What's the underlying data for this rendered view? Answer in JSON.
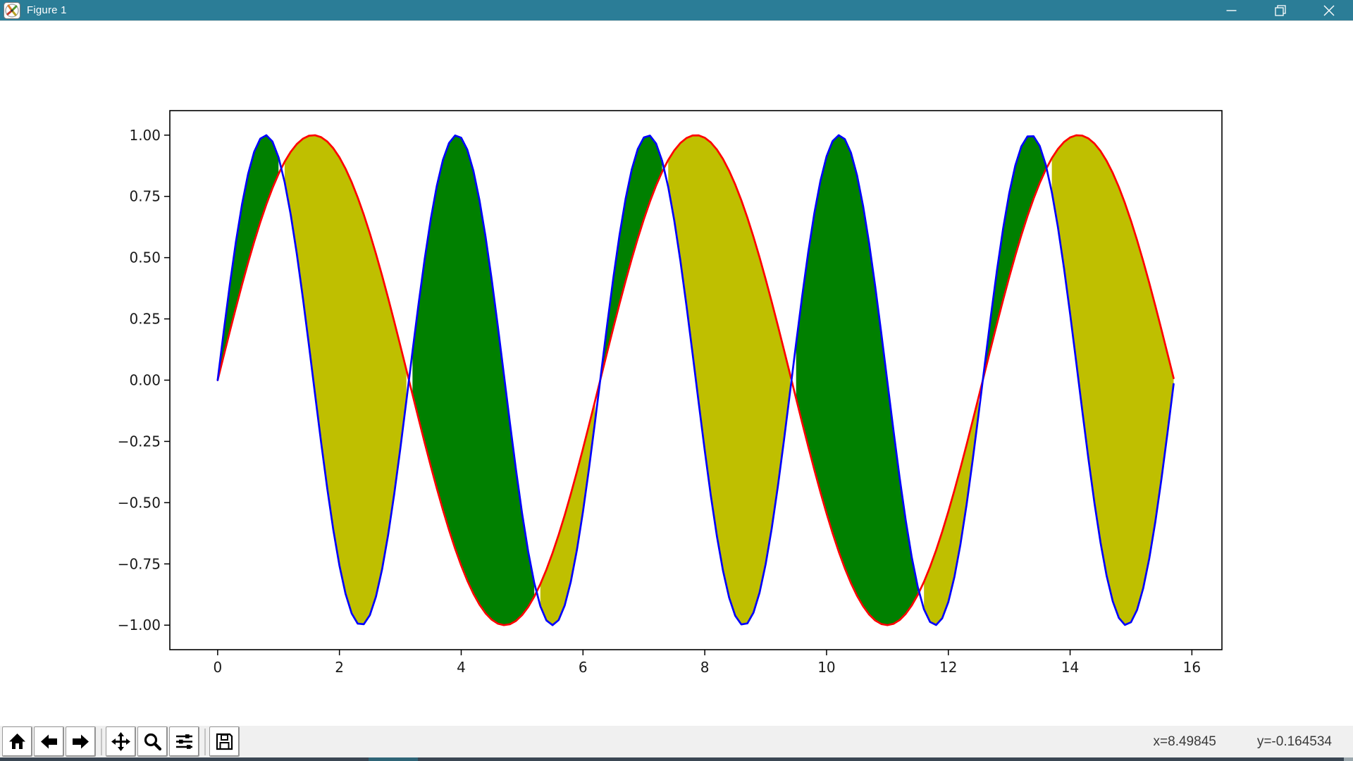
{
  "window": {
    "title": "Figure 1",
    "titlebar_color": "#2b7d97",
    "icon": "matplotlib-logo-icon",
    "controls": [
      "minimize",
      "restore",
      "close"
    ]
  },
  "toolbar": {
    "buttons": [
      "home",
      "back",
      "forward",
      "pan",
      "zoom-to-rect",
      "configure-subplots",
      "save"
    ],
    "status": {
      "x": "x=8.49845",
      "y": "y=-0.164534"
    }
  },
  "chart_data": {
    "type": "line",
    "title": "",
    "xlabel": "",
    "ylabel": "",
    "x_start": 0,
    "x_end": 15.70796,
    "x_step": 0.1,
    "series": [
      {
        "name": "sin(2x)",
        "amplitude": 1,
        "frequency": 2,
        "phase": 0,
        "color": "#0000ff",
        "linewidth": 2.7
      },
      {
        "name": "sin(x)",
        "amplitude": 1,
        "frequency": 1,
        "phase": 0,
        "color": "#ff0000",
        "linewidth": 2.7
      }
    ],
    "fills": [
      {
        "name": "green-fill",
        "where": "series0>=series1",
        "color": "#008000"
      },
      {
        "name": "yellow-fill",
        "where": "series1>=series0",
        "color": "#bfbf00"
      }
    ],
    "xlim": [
      -0.7854,
      16.4934
    ],
    "ylim": [
      -1.1,
      1.1
    ],
    "xticks": [
      0,
      2,
      4,
      6,
      8,
      10,
      12,
      14,
      16
    ],
    "xtick_labels": [
      "0",
      "2",
      "4",
      "6",
      "8",
      "10",
      "12",
      "14",
      "16"
    ],
    "yticks": [
      -1.0,
      -0.75,
      -0.5,
      -0.25,
      0.0,
      0.25,
      0.5,
      0.75,
      1.0
    ],
    "ytick_labels": [
      "−1.00",
      "−0.75",
      "−0.50",
      "−0.25",
      "0.00",
      "0.25",
      "0.50",
      "0.75",
      "1.00"
    ],
    "grid": false,
    "legend": false
  }
}
